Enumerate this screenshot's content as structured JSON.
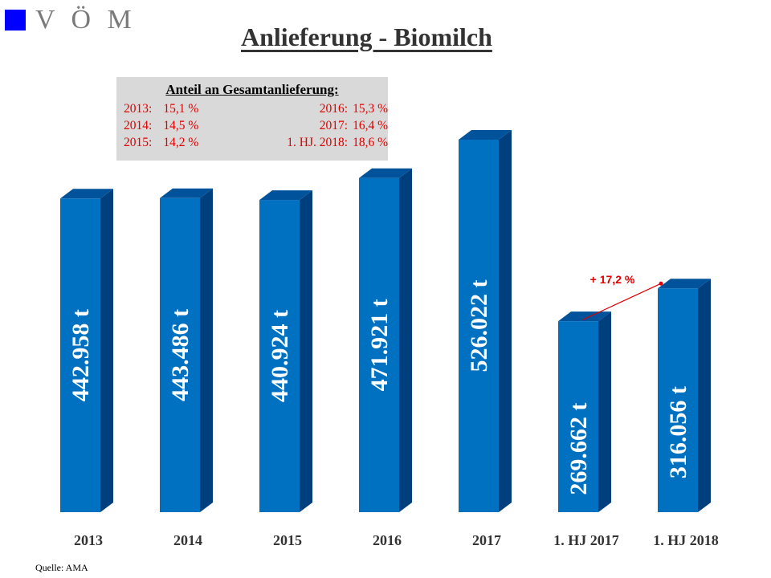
{
  "logo": {
    "text": "V Ö M",
    "color": "#0000ff"
  },
  "title": "Anlieferung - Biomilch",
  "info_box": {
    "heading": "Anteil an Gesamtanlieferung:",
    "left": [
      {
        "label": "2013:",
        "value": "15,1 %"
      },
      {
        "label": "2014:",
        "value": "14,5 %"
      },
      {
        "label": "2015:",
        "value": "14,2 %"
      }
    ],
    "right": [
      {
        "label": "2016:",
        "value": "15,3 %"
      },
      {
        "label": "2017:",
        "value": "16,4 %"
      },
      {
        "label": "1. HJ. 2018:",
        "value": "18,6 %"
      }
    ]
  },
  "source": "Quelle: AMA",
  "colors": {
    "bar_front": "#0070c0",
    "bar_side": "#003f7d",
    "bar_top": "#00529b",
    "annotation": "#e00000"
  },
  "chart_data": {
    "type": "bar",
    "categories": [
      "2013",
      "2014",
      "2015",
      "2016",
      "2017",
      "1. HJ 2017",
      "1. HJ 2018"
    ],
    "values": [
      442958,
      443486,
      440924,
      471921,
      526022,
      269662,
      316056
    ],
    "data_labels": [
      "442.958 t",
      "443.486 t",
      "440.924 t",
      "471.921 t",
      "526.022 t",
      "269.662 t",
      "316.056 t"
    ],
    "ylim": [
      0,
      526022
    ],
    "annotations": [
      {
        "text": "+ 17,2 %",
        "from": "1. HJ 2017",
        "to": "1. HJ 2018"
      }
    ],
    "grid": false,
    "legend": "none"
  }
}
